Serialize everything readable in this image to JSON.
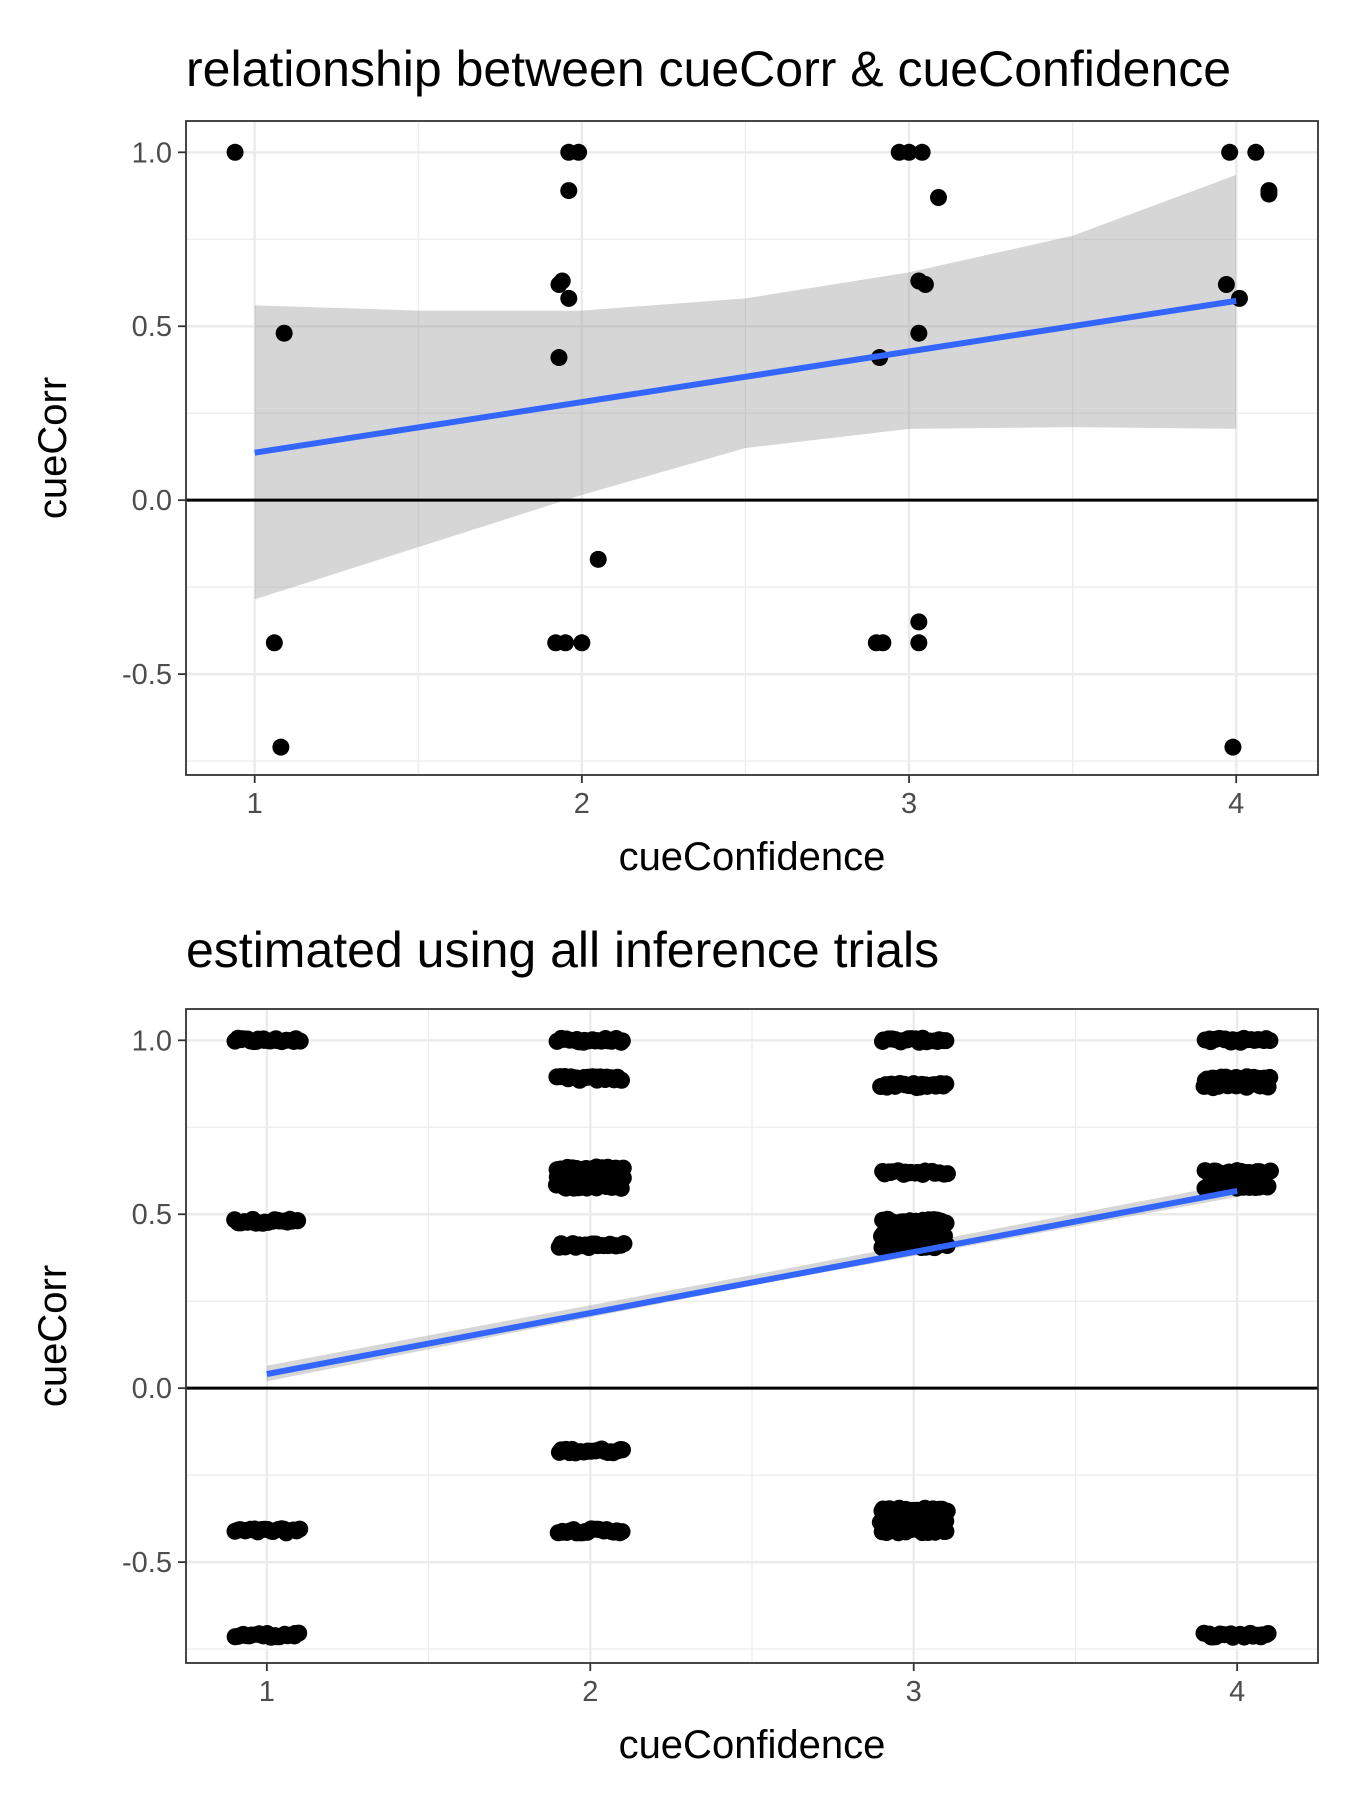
{
  "colors": {
    "points": "#000000",
    "fit_line": "#3366FF",
    "ribbon": "#999999",
    "hline": "#000000"
  },
  "chart_data": [
    {
      "type": "scatter",
      "title": "relationship between cueCorr & cueConfidence",
      "xlabel": "cueConfidence",
      "ylabel": "cueCorr",
      "xlim": [
        0.79,
        4.25
      ],
      "ylim": [
        -0.79,
        1.09
      ],
      "x_ticks": [
        1,
        2,
        3,
        4
      ],
      "y_ticks": [
        -0.5,
        0.0,
        0.5,
        1.0
      ],
      "x_tick_labels": [
        "1",
        "2",
        "3",
        "4"
      ],
      "y_tick_labels": [
        "-0.5",
        "0.0",
        "0.5",
        "1.0"
      ],
      "grid": true,
      "hline": 0,
      "points": [
        [
          0.94,
          1.0
        ],
        [
          1.09,
          0.48
        ],
        [
          1.06,
          -0.41
        ],
        [
          1.08,
          -0.71
        ],
        [
          1.96,
          1.0
        ],
        [
          1.99,
          1.0
        ],
        [
          1.96,
          0.89
        ],
        [
          1.94,
          0.63
        ],
        [
          1.93,
          0.62
        ],
        [
          1.96,
          0.58
        ],
        [
          1.93,
          0.41
        ],
        [
          2.05,
          -0.17
        ],
        [
          1.92,
          -0.41
        ],
        [
          1.95,
          -0.41
        ],
        [
          2.0,
          -0.41
        ],
        [
          2.97,
          1.0
        ],
        [
          3.0,
          1.0
        ],
        [
          3.04,
          1.0
        ],
        [
          3.09,
          0.87
        ],
        [
          3.03,
          0.63
        ],
        [
          3.05,
          0.62
        ],
        [
          3.03,
          0.48
        ],
        [
          2.91,
          0.41
        ],
        [
          3.03,
          -0.35
        ],
        [
          2.9,
          -0.41
        ],
        [
          2.92,
          -0.41
        ],
        [
          3.03,
          -0.41
        ],
        [
          3.98,
          1.0
        ],
        [
          4.06,
          1.0
        ],
        [
          4.1,
          0.89
        ],
        [
          4.1,
          0.88
        ],
        [
          3.97,
          0.62
        ],
        [
          4.01,
          0.58
        ],
        [
          3.99,
          -0.71
        ]
      ],
      "fit": {
        "x_range": [
          1,
          4
        ],
        "intercept": -0.009,
        "slope": 0.1455
      },
      "ribbon": {
        "x": [
          1.0,
          1.5,
          2.0,
          2.5,
          3.0,
          3.5,
          4.0
        ],
        "lower": [
          -0.285,
          -0.135,
          0.015,
          0.15,
          0.205,
          0.21,
          0.205
        ],
        "upper": [
          0.56,
          0.545,
          0.545,
          0.58,
          0.655,
          0.76,
          0.935
        ]
      }
    },
    {
      "type": "scatter",
      "title": "estimated using all inference trials",
      "xlabel": "cueConfidence",
      "ylabel": "cueCorr",
      "xlim": [
        0.75,
        4.25
      ],
      "ylim": [
        -0.79,
        1.09
      ],
      "x_ticks": [
        1,
        2,
        3,
        4
      ],
      "y_ticks": [
        -0.5,
        0.0,
        0.5,
        1.0
      ],
      "x_tick_labels": [
        "1",
        "2",
        "3",
        "4"
      ],
      "y_tick_labels": [
        "-0.5",
        "0.0",
        "0.5",
        "1.0"
      ],
      "grid": true,
      "hline": 0,
      "jitter_width": 0.1,
      "clusters": [
        {
          "x": 1,
          "y": [
            1.0,
            0.48,
            -0.41,
            -0.71
          ]
        },
        {
          "x": 2,
          "y": [
            1.0,
            0.89,
            0.63,
            0.61,
            0.58,
            0.41,
            -0.18,
            -0.41
          ]
        },
        {
          "x": 3,
          "y": [
            1.0,
            0.87,
            0.62,
            0.48,
            0.44,
            0.41,
            -0.35,
            -0.38,
            -0.41
          ]
        },
        {
          "x": 4,
          "y": [
            1.0,
            0.89,
            0.87,
            0.62,
            0.58,
            -0.71
          ]
        }
      ],
      "fit": {
        "x_range": [
          1,
          4
        ],
        "intercept": -0.135,
        "slope": 0.1755
      },
      "ribbon": {
        "x": [
          1.0,
          2.5,
          4.0
        ],
        "lower": [
          0.02,
          0.295,
          0.55
        ],
        "upper": [
          0.065,
          0.325,
          0.59
        ]
      }
    }
  ]
}
